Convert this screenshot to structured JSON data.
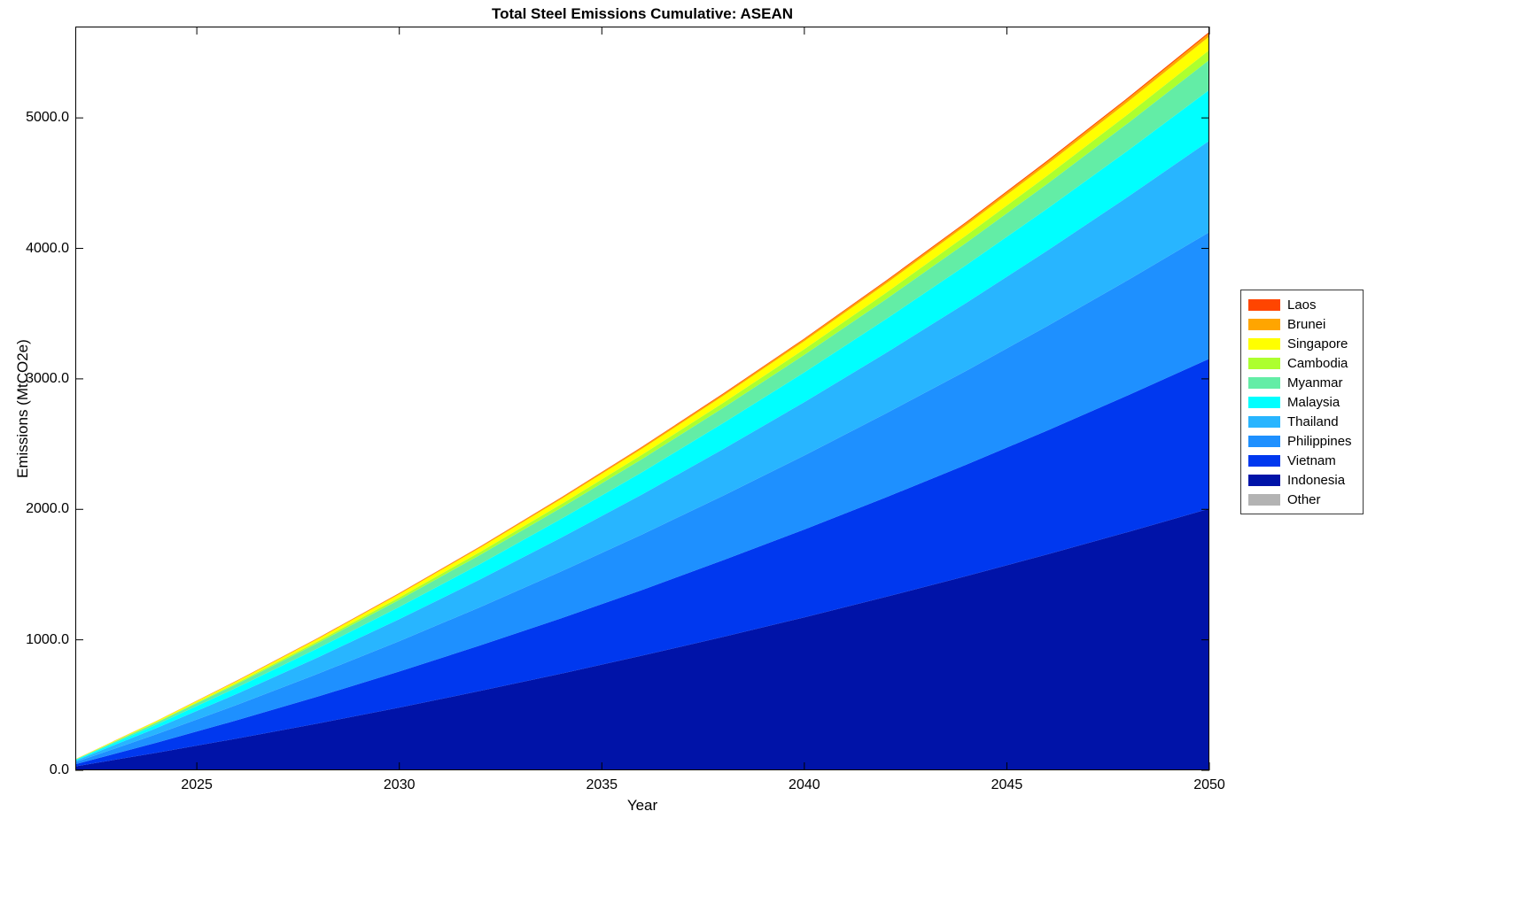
{
  "chart_data": {
    "type": "area",
    "stacked": true,
    "title": "Total Steel Emissions Cumulative: ASEAN",
    "xlabel": "Year",
    "ylabel": "Emissions (MtCO2e)",
    "xlim": [
      2022,
      2050
    ],
    "ylim": [
      0,
      5700
    ],
    "grid": false,
    "legend_position": "outside-right",
    "stacking_note": "series stacked bottom-to-top in reverse legend order (Other at bottom, Laos at top); values are cumulative MtCO2e estimated from gridlines",
    "x_ticks": {
      "values": [
        2025,
        2030,
        2035,
        2040,
        2045,
        2050
      ],
      "labels": [
        "2025",
        "2030",
        "2035",
        "2040",
        "2045",
        "2050"
      ]
    },
    "y_ticks": {
      "values": [
        0,
        1000,
        2000,
        3000,
        4000,
        5000
      ],
      "labels": [
        "0.0",
        "1000.0",
        "2000.0",
        "3000.0",
        "4000.0",
        "5000.0"
      ]
    },
    "x": [
      2022,
      2024,
      2026,
      2028,
      2030,
      2032,
      2034,
      2036,
      2038,
      2040,
      2042,
      2044,
      2046,
      2048,
      2050
    ],
    "series": [
      {
        "name": "Laos",
        "color": "#ff4500",
        "values": [
          0.2,
          0.7,
          1.2,
          1.8,
          2.4,
          3.0,
          3.7,
          4.4,
          5.1,
          5.8,
          6.6,
          7.4,
          8.3,
          9.1,
          10
        ]
      },
      {
        "name": "Brunei",
        "color": "#ffa500",
        "values": [
          0.4,
          1.7,
          3.1,
          4.5,
          6.0,
          7.6,
          9.2,
          11,
          12.8,
          14.6,
          16.6,
          18.6,
          20.6,
          22.8,
          25
        ]
      },
      {
        "name": "Singapore",
        "color": "#ffff00",
        "values": [
          2,
          7,
          13,
          19,
          25,
          32,
          39,
          46,
          54,
          61,
          70,
          78,
          87,
          96,
          105
        ]
      },
      {
        "name": "Cambodia",
        "color": "#adff2f",
        "values": [
          1,
          5,
          9,
          13,
          18,
          23,
          28,
          33,
          38,
          44,
          50,
          56,
          62,
          68,
          75
        ]
      },
      {
        "name": "Myanmar",
        "color": "#63eda6",
        "values": [
          3,
          15,
          28,
          41,
          55,
          70,
          85,
          101,
          117,
          135,
          152,
          171,
          190,
          210,
          230
        ]
      },
      {
        "name": "Malaysia",
        "color": "#00ffff",
        "values": [
          6,
          26,
          48,
          70,
          94,
          118,
          144,
          171,
          199,
          228,
          258,
          290,
          322,
          355,
          390
        ]
      },
      {
        "name": "Thailand",
        "color": "#28b5ff",
        "values": [
          11,
          47,
          85,
          126,
          168,
          212,
          259,
          307,
          357,
          409,
          464,
          520,
          578,
          638,
          700
        ]
      },
      {
        "name": "Philippines",
        "color": "#1e90ff",
        "values": [
          15,
          65,
          118,
          174,
          233,
          294,
          359,
          425,
          495,
          567,
          642,
          720,
          801,
          884,
          970
        ]
      },
      {
        "name": "Vietnam",
        "color": "#0038ef",
        "values": [
          17,
          77,
          140,
          207,
          276,
          349,
          425,
          504,
          587,
          673,
          762,
          854,
          949,
          1048,
          1150
        ]
      },
      {
        "name": "Indonesia",
        "color": "#0013a8",
        "values": [
          30,
          134,
          244,
          359,
          480,
          607,
          739,
          877,
          1021,
          1170,
          1325,
          1485,
          1651,
          1823,
          2000
        ]
      },
      {
        "name": "Other",
        "color": "#b3b3b3",
        "values": [
          0.1,
          0.3,
          0.6,
          0.9,
          1.2,
          1.5,
          1.8,
          2.2,
          2.6,
          2.9,
          3.3,
          3.7,
          4.1,
          4.6,
          5.0
        ]
      }
    ]
  }
}
